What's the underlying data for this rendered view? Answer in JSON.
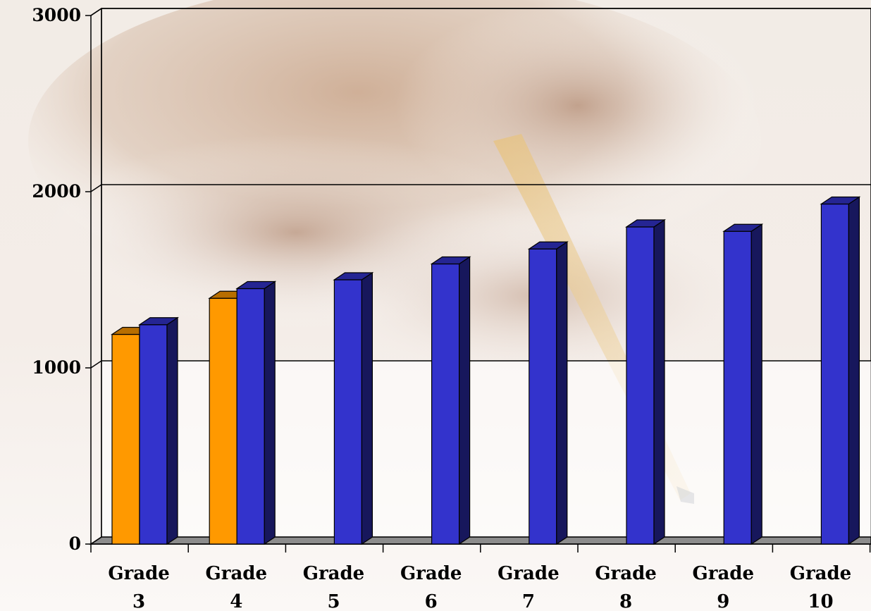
{
  "chart_data": {
    "type": "bar",
    "categories": [
      [
        "Grade",
        "3"
      ],
      [
        "Grade",
        "4"
      ],
      [
        "Grade",
        "5"
      ],
      [
        "Grade",
        "6"
      ],
      [
        "Grade",
        "7"
      ],
      [
        "Grade",
        "8"
      ],
      [
        "Grade",
        "9"
      ],
      [
        "Grade",
        "10"
      ]
    ],
    "series": [
      {
        "color": "#ff9900",
        "values": [
          1190,
          1395,
          null,
          null,
          null,
          null,
          null,
          null
        ]
      },
      {
        "color": "#3333cc",
        "values": [
          1245,
          1450,
          1500,
          1590,
          1675,
          1800,
          1775,
          1930
        ]
      }
    ],
    "ylim": [
      0,
      3000
    ],
    "yticks": [
      "0",
      "1000",
      "2000",
      "3000"
    ],
    "grid": true,
    "projection": "3d-bar",
    "background": "photograph of a hand holding a pencil"
  }
}
